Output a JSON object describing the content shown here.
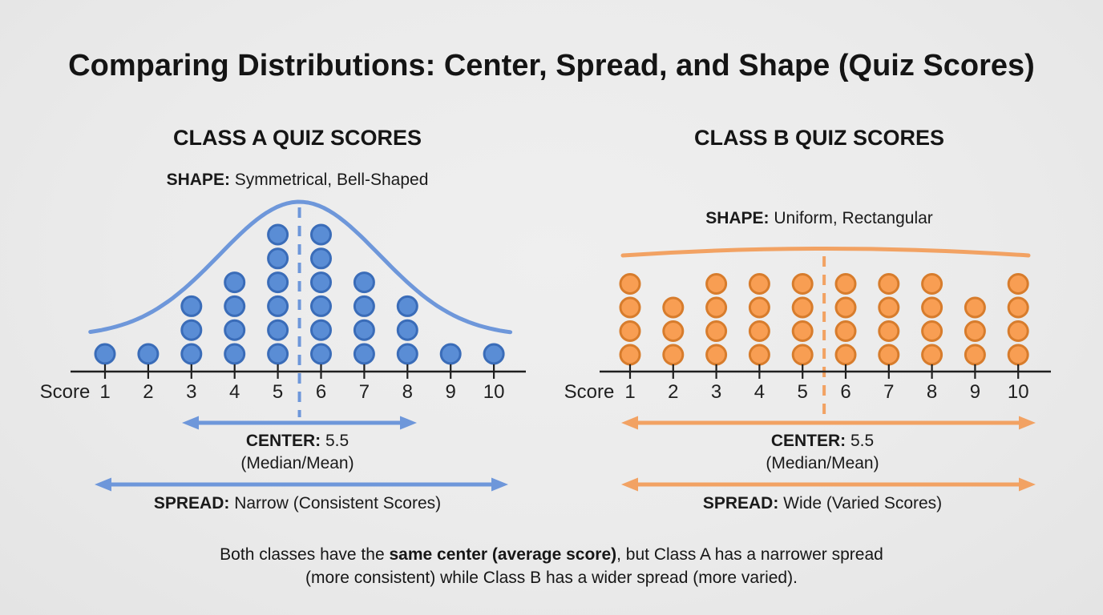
{
  "page": {
    "title": "Comparing Distributions: Center, Spread, and Shape (Quiz Scores)",
    "background": "#ebebeb"
  },
  "summary": {
    "line1_pre": "Both classes have the ",
    "line1_bold": "same center (average score)",
    "line1_post": ", but Class A has a narrower spread",
    "line2": "(more consistent) while Class B has a wider spread (more varied)."
  },
  "chart_data": [
    {
      "type": "dotplot",
      "title": "CLASS A QUIZ SCORES",
      "shape": {
        "label": "SHAPE:",
        "value": " Symmetrical, Bell-Shaped"
      },
      "xlabel": "Score",
      "categories": [
        1,
        2,
        3,
        4,
        5,
        6,
        7,
        8,
        9,
        10
      ],
      "values": [
        1,
        1,
        3,
        4,
        6,
        6,
        4,
        3,
        1,
        1
      ],
      "center_line_x": 5.5,
      "center": {
        "label": "CENTER:",
        "value": " 5.5",
        "sub": "(Median/Mean)"
      },
      "spread": {
        "label": "SPREAD:",
        "value": " Narrow (Consistent Scores)"
      },
      "overlay_curve": "bell",
      "axis_range": [
        1,
        10
      ],
      "colors": {
        "dot_fill": "#5a8dd5",
        "dot_stroke": "#3a6cb8",
        "accent": "#6e97da"
      }
    },
    {
      "type": "dotplot",
      "title": "CLASS B QUIZ SCORES",
      "shape": {
        "label": "SHAPE:",
        "value": " Uniform, Rectangular"
      },
      "xlabel": "Score",
      "categories": [
        1,
        2,
        3,
        4,
        5,
        6,
        7,
        8,
        9,
        10
      ],
      "values": [
        4,
        3,
        4,
        4,
        4,
        4,
        4,
        4,
        3,
        4
      ],
      "center_line_x": 5.5,
      "center": {
        "label": "CENTER:",
        "value": " 5.5",
        "sub": "(Median/Mean)"
      },
      "spread": {
        "label": "SPREAD:",
        "value": " Wide (Varied Scores)"
      },
      "overlay_curve": "flat-arc",
      "axis_range": [
        1,
        10
      ],
      "colors": {
        "dot_fill": "#f89e53",
        "dot_stroke": "#d77c2c",
        "accent": "#f2a263"
      }
    }
  ]
}
